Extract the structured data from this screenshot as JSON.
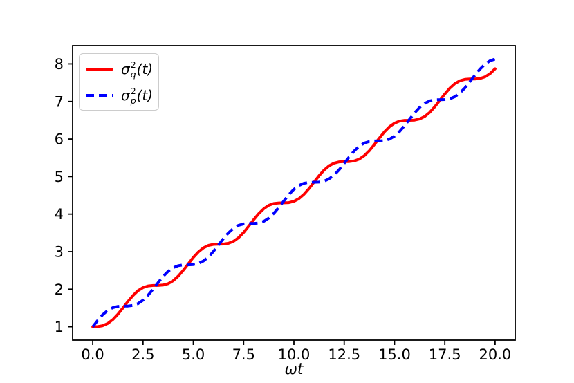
{
  "figure": {
    "background": "#ffffff"
  },
  "chart_data": {
    "type": "line",
    "xlabel": "ωt",
    "xlim": [
      -1,
      21
    ],
    "ylim": [
      0.643,
      8.487
    ],
    "grid": false,
    "axis_color": "#000000",
    "x_ticks": {
      "values": [
        0,
        2.5,
        5,
        7.5,
        10,
        12.5,
        15,
        17.5,
        20
      ],
      "labels": [
        "0.0",
        "2.5",
        "5.0",
        "7.5",
        "10.0",
        "12.5",
        "15.0",
        "17.5",
        "20.0"
      ]
    },
    "y_ticks": {
      "values": [
        1,
        2,
        3,
        4,
        5,
        6,
        7,
        8
      ],
      "labels": [
        "1",
        "2",
        "3",
        "4",
        "5",
        "6",
        "7",
        "8"
      ]
    },
    "legend": {
      "position": "upper left",
      "entries": [
        {
          "sigma": "σ",
          "sup": "2",
          "sub": "q",
          "rest": "(t)",
          "color": "#ff0000",
          "style": "solid"
        },
        {
          "sigma": "σ",
          "sup": "2",
          "sub": "p",
          "rest": "(t)",
          "color": "#0000ff",
          "style": "dashed"
        }
      ]
    },
    "x": [
      0,
      0.25,
      0.5,
      0.75,
      1,
      1.25,
      1.5,
      1.75,
      2,
      2.25,
      2.5,
      2.75,
      3,
      3.25,
      3.5,
      3.75,
      4,
      4.25,
      4.5,
      4.75,
      5,
      5.25,
      5.5,
      5.75,
      6,
      6.25,
      6.5,
      6.75,
      7,
      7.25,
      7.5,
      7.75,
      8,
      8.25,
      8.5,
      8.75,
      9,
      9.25,
      9.5,
      9.75,
      10,
      10.25,
      10.5,
      10.75,
      11,
      11.25,
      11.5,
      11.75,
      12,
      12.25,
      12.5,
      12.75,
      13,
      13.25,
      13.5,
      13.75,
      14,
      14.25,
      14.5,
      14.75,
      15,
      15.25,
      15.5,
      15.75,
      16,
      16.25,
      16.5,
      16.75,
      17,
      17.25,
      17.5,
      17.75,
      18,
      18.25,
      18.5,
      18.75,
      19,
      19.25,
      19.5,
      19.75,
      20
    ],
    "series": [
      {
        "name": "sigma-q-squared",
        "label": "σ_q^2(t)",
        "color": "#ff0000",
        "linestyle": "solid",
        "values": [
          1.0,
          1.004,
          1.028,
          1.088,
          1.191,
          1.333,
          1.5,
          1.674,
          1.832,
          1.959,
          2.043,
          2.086,
          2.099,
          2.1,
          2.11,
          2.148,
          2.227,
          2.348,
          2.503,
          2.676,
          2.845,
          2.991,
          3.1,
          3.166,
          3.194,
          3.199,
          3.202,
          3.222,
          3.277,
          3.374,
          3.511,
          3.676,
          3.85,
          4.012,
          4.143,
          4.233,
          4.281,
          4.297,
          4.299,
          4.306,
          4.34,
          4.413,
          4.529,
          4.68,
          4.852,
          5.023,
          5.173,
          5.287,
          5.358,
          5.391,
          5.398,
          5.4,
          5.417,
          5.466,
          5.558,
          5.69,
          5.853,
          6.027,
          6.191,
          6.327,
          6.423,
          6.476,
          6.496,
          6.498,
          6.503,
          6.533,
          6.6,
          6.71,
          6.857,
          7.027,
          7.2,
          7.354,
          7.474,
          7.551,
          7.588,
          7.597,
          7.598,
          7.612,
          7.656,
          7.742,
          7.87
        ]
      },
      {
        "name": "sigma-p-squared",
        "label": "σ_p^2(t)",
        "color": "#0000ff",
        "linestyle": "dashed",
        "values": [
          1.0,
          1.171,
          1.322,
          1.437,
          1.509,
          1.542,
          1.55,
          1.551,
          1.568,
          1.616,
          1.707,
          1.839,
          2.001,
          2.175,
          2.34,
          2.477,
          2.573,
          2.627,
          2.647,
          2.649,
          2.655,
          2.684,
          2.75,
          2.859,
          3.006,
          3.176,
          3.349,
          3.503,
          3.623,
          3.701,
          3.739,
          3.749,
          3.75,
          3.763,
          3.807,
          3.892,
          4.019,
          4.178,
          4.351,
          4.519,
          4.66,
          4.762,
          4.821,
          4.845,
          4.848,
          4.852,
          4.877,
          4.938,
          5.042,
          5.184,
          5.352,
          5.525,
          5.684,
          5.809,
          5.892,
          5.935,
          5.947,
          5.948,
          5.959,
          5.998,
          6.077,
          6.199,
          6.354,
          6.527,
          6.697,
          6.842,
          6.95,
          7.015,
          7.043,
          7.048,
          7.05,
          7.071,
          7.126,
          7.224,
          7.362,
          7.528,
          7.702,
          7.863,
          7.994,
          8.083,
          8.13
        ]
      }
    ]
  }
}
